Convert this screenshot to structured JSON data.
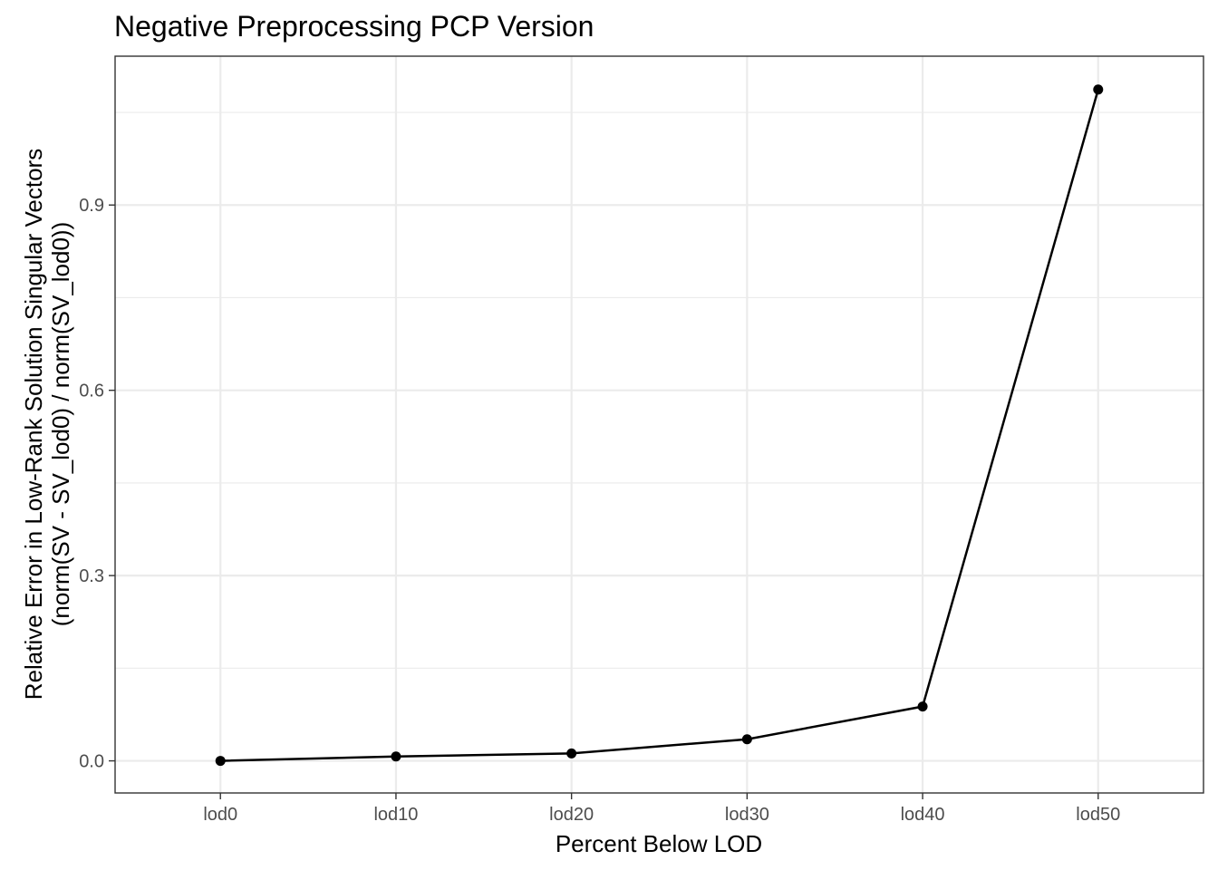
{
  "chart_data": {
    "type": "line",
    "title": "Negative Preprocessing PCP Version",
    "xlabel": "Percent Below LOD",
    "ylabel_line1": "Relative Error in Low-Rank Solution Singular Vectors",
    "ylabel_line2": "(norm(SV - SV_lod0) / norm(SV_lod0))",
    "categories": [
      "lod0",
      "lod10",
      "lod20",
      "lod30",
      "lod40",
      "lod50"
    ],
    "series": [
      {
        "values": [
          0.0,
          0.007,
          0.012,
          0.035,
          0.088,
          1.087
        ],
        "color": "#000000"
      }
    ],
    "ylim": [
      -0.052,
      1.141
    ],
    "yticks": [
      0.0,
      0.3,
      0.6,
      0.9
    ],
    "ytick_labels": [
      "0.0",
      "0.3",
      "0.6",
      "0.9"
    ],
    "grid": true,
    "legend": "none"
  }
}
